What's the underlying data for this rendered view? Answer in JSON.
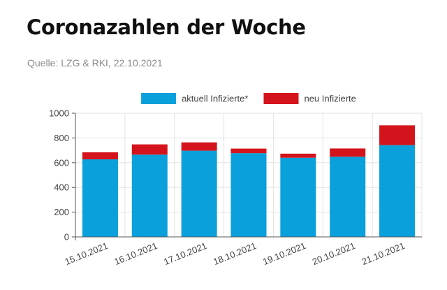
{
  "header": {
    "title": "Coronazahlen der Woche",
    "source": "Quelle: LZG & RKI, 22.10.2021"
  },
  "colors": {
    "series_primary": "#0aa0dc",
    "series_secondary": "#d4141c",
    "grid": "#e3e3e3",
    "axis": "#555555"
  },
  "chart_data": {
    "type": "bar",
    "stacked": true,
    "categories": [
      "15.10.2021",
      "16.10.2021",
      "17.10.2021",
      "18.10.2021",
      "19.10.2021",
      "20.10.2021",
      "21.10.2021"
    ],
    "series": [
      {
        "name": "aktuell Infizierte*",
        "color": "#0aa0dc",
        "values": [
          627,
          665,
          697,
          677,
          640,
          648,
          742
        ]
      },
      {
        "name": "neu Infizierte",
        "color": "#d4141c",
        "values": [
          57,
          83,
          67,
          37,
          33,
          67,
          160
        ]
      }
    ],
    "y_ticks": [
      0,
      200,
      400,
      600,
      800,
      1000
    ],
    "ylim": [
      0,
      1000
    ],
    "grid": true,
    "legend_position": "top-center",
    "x_tick_rotation": "diagonal"
  }
}
